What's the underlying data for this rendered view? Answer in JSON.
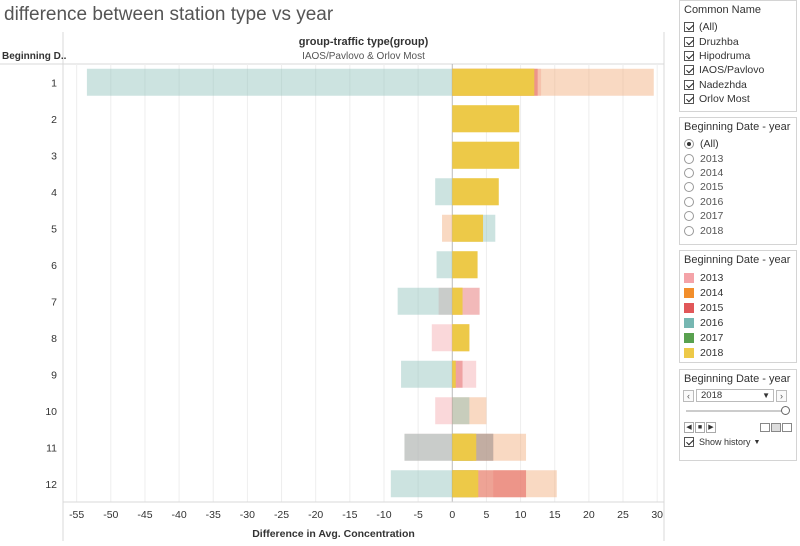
{
  "title": "difference between station type vs year",
  "chart": {
    "column_header": "group-traffic type(group)",
    "column_subheader": "IAOS/Pavlovo & Orlov Most",
    "row_header": "Beginning D..",
    "x_title": "Difference in Avg. Concentration"
  },
  "chart_data": {
    "type": "bar",
    "stacking": "overlaid-stacked horizontal bars, one row per Beginning Date month",
    "categories": [
      "1",
      "2",
      "3",
      "4",
      "5",
      "6",
      "7",
      "8",
      "9",
      "10",
      "11",
      "12"
    ],
    "xlim": [
      -57,
      31
    ],
    "x_ticks": [
      -55,
      -50,
      -45,
      -40,
      -35,
      -30,
      -25,
      -20,
      -15,
      -10,
      -5,
      0,
      5,
      10,
      15,
      20,
      25,
      30
    ],
    "xlabel": "Difference in Avg. Concentration",
    "ylabel": "Beginning D..",
    "grid": true,
    "series": [
      {
        "name": "2013",
        "color": "#f4a3a8",
        "values": [
          [
            0,
            13.0
          ],
          null,
          null,
          null,
          null,
          null,
          [
            -2,
            0
          ],
          [
            -3,
            0
          ],
          [
            0,
            3.5
          ],
          [
            -2.5,
            0
          ],
          [
            -7,
            0
          ],
          [
            6,
            10.8
          ]
        ]
      },
      {
        "name": "2014",
        "color": "#f1a46d",
        "values": [
          [
            0,
            29.5
          ],
          null,
          null,
          null,
          [
            -1.5,
            0
          ],
          null,
          null,
          [
            0,
            2.5
          ],
          [
            0,
            0
          ],
          [
            0,
            5
          ],
          [
            0,
            10.8
          ],
          [
            0,
            15.3
          ]
        ]
      },
      {
        "name": "2015",
        "color": "#e15759",
        "values": [
          [
            0,
            12.5
          ],
          null,
          null,
          null,
          null,
          null,
          [
            0,
            4
          ],
          null,
          [
            0,
            1.5
          ],
          null,
          [
            0,
            6
          ],
          [
            0,
            10.8
          ]
        ]
      },
      {
        "name": "2016",
        "color": "#86bcb6",
        "values": [
          [
            -53.5,
            0
          ],
          null,
          null,
          [
            -2.5,
            0
          ],
          [
            0,
            6.3
          ],
          [
            -2.3,
            0
          ],
          [
            -8,
            0
          ],
          null,
          [
            -7.5,
            0
          ],
          [
            0,
            2.5
          ],
          [
            -7,
            6
          ],
          [
            -9,
            0
          ]
        ]
      },
      {
        "name": "2017",
        "color": "#59a14f",
        "values": [
          null,
          null,
          null,
          null,
          null,
          null,
          null,
          null,
          null,
          null,
          [
            0,
            3
          ],
          [
            0,
            3.5
          ]
        ]
      },
      {
        "name": "2018",
        "color": "#edc948",
        "values": [
          [
            0,
            12
          ],
          [
            0,
            9.8
          ],
          [
            0,
            9.8
          ],
          [
            0,
            6.8
          ],
          [
            0,
            4.5
          ],
          [
            0,
            3.7
          ],
          [
            0,
            1.5
          ],
          [
            0,
            2.5
          ],
          [
            0,
            0.5
          ],
          [
            0,
            0
          ],
          [
            0,
            3.5
          ],
          [
            0,
            3.8
          ]
        ]
      }
    ]
  },
  "filter_common_name": {
    "title": "Common Name",
    "items": [
      "(All)",
      "Druzhba",
      "Hipodruma",
      "IAOS/Pavlovo",
      "Nadezhda",
      "Orlov Most"
    ]
  },
  "filter_year": {
    "title": "Beginning Date - year",
    "options": [
      "(All)",
      "2013",
      "2014",
      "2015",
      "2016",
      "2017",
      "2018"
    ],
    "selected": "(All)"
  },
  "legend": {
    "title": "Beginning Date - year",
    "items": [
      {
        "label": "2013",
        "color": "#f4a3a8"
      },
      {
        "label": "2014",
        "color": "#f28e2b"
      },
      {
        "label": "2015",
        "color": "#e15759"
      },
      {
        "label": "2016",
        "color": "#76b7b2"
      },
      {
        "label": "2017",
        "color": "#59a14f"
      },
      {
        "label": "2018",
        "color": "#edc948"
      }
    ]
  },
  "page_control": {
    "title": "Beginning Date - year",
    "value": "2018",
    "show_history_label": "Show history"
  }
}
